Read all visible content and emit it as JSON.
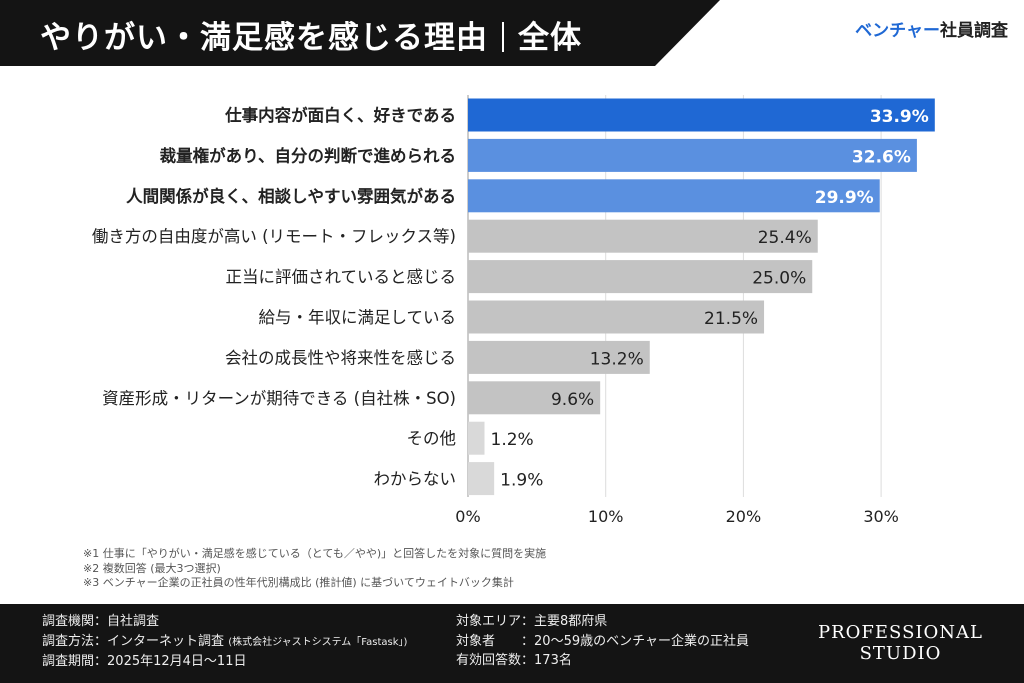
{
  "header": {
    "title_main": "やりがい・満足感を感じる理由",
    "title_sub": "全体",
    "brand_accent": "ベンチャー",
    "brand_rest": "社員調査"
  },
  "colors": {
    "top1": "#1f68d4",
    "top2_3": "#5a90e0",
    "other": "#c3c3c3",
    "minor": "#d9d9d9",
    "header_bg": "#141414"
  },
  "chart_data": {
    "type": "bar",
    "orientation": "horizontal",
    "categories": [
      "仕事内容が面白く、好きである",
      "裁量権があり、自分の判断で進められる",
      "人間関係が良く、相談しやすい雰囲気がある",
      "働き方の自由度が高い (リモート・フレックス等)",
      "正当に評価されていると感じる",
      "給与・年収に満足している",
      "会社の成長性や将来性を感じる",
      "資産形成・リターンが期待できる (自社株・SO)",
      "その他",
      "わからない"
    ],
    "values": [
      33.9,
      32.6,
      29.9,
      25.4,
      25.0,
      21.5,
      13.2,
      9.6,
      1.2,
      1.9
    ],
    "value_labels": [
      "33.9%",
      "32.6%",
      "29.9%",
      "25.4%",
      "25.0%",
      "21.5%",
      "13.2%",
      "9.6%",
      "1.2%",
      "1.9%"
    ],
    "xlim": [
      0,
      34
    ],
    "x_ticks": [
      0,
      10,
      20,
      30
    ],
    "x_tick_labels": [
      "0%",
      "10%",
      "20%",
      "30%"
    ],
    "grid": "vertical",
    "title": "",
    "xlabel": "",
    "ylabel": ""
  },
  "notes": [
    "※1 仕事に「やりがい・満足感を感じている（とても／やや)」と回答したを対象に質問を実施",
    "※2 複数回答 (最大3つ選択)",
    "※3 ベンチャー企業の正社員の性年代別構成比 (推計値) に基づいてウェイトバック集計"
  ],
  "footer": {
    "left": [
      {
        "k": "調査機関",
        "v": "自社調査",
        "s": ""
      },
      {
        "k": "調査方法",
        "v": "インターネット調査",
        "s": "(株式会社ジャストシステム「Fastask」)"
      },
      {
        "k": "調査期間",
        "v": "2025年12月4日〜11日",
        "s": ""
      }
    ],
    "right": [
      {
        "k": "対象エリア",
        "v": "主要8都府県"
      },
      {
        "k": "対象者　　",
        "v": "20〜59歳のベンチャー企業の正社員"
      },
      {
        "k": "有効回答数",
        "v": "173名"
      }
    ],
    "logo": [
      "PROFESSIONAL",
      "STUDIO"
    ]
  }
}
